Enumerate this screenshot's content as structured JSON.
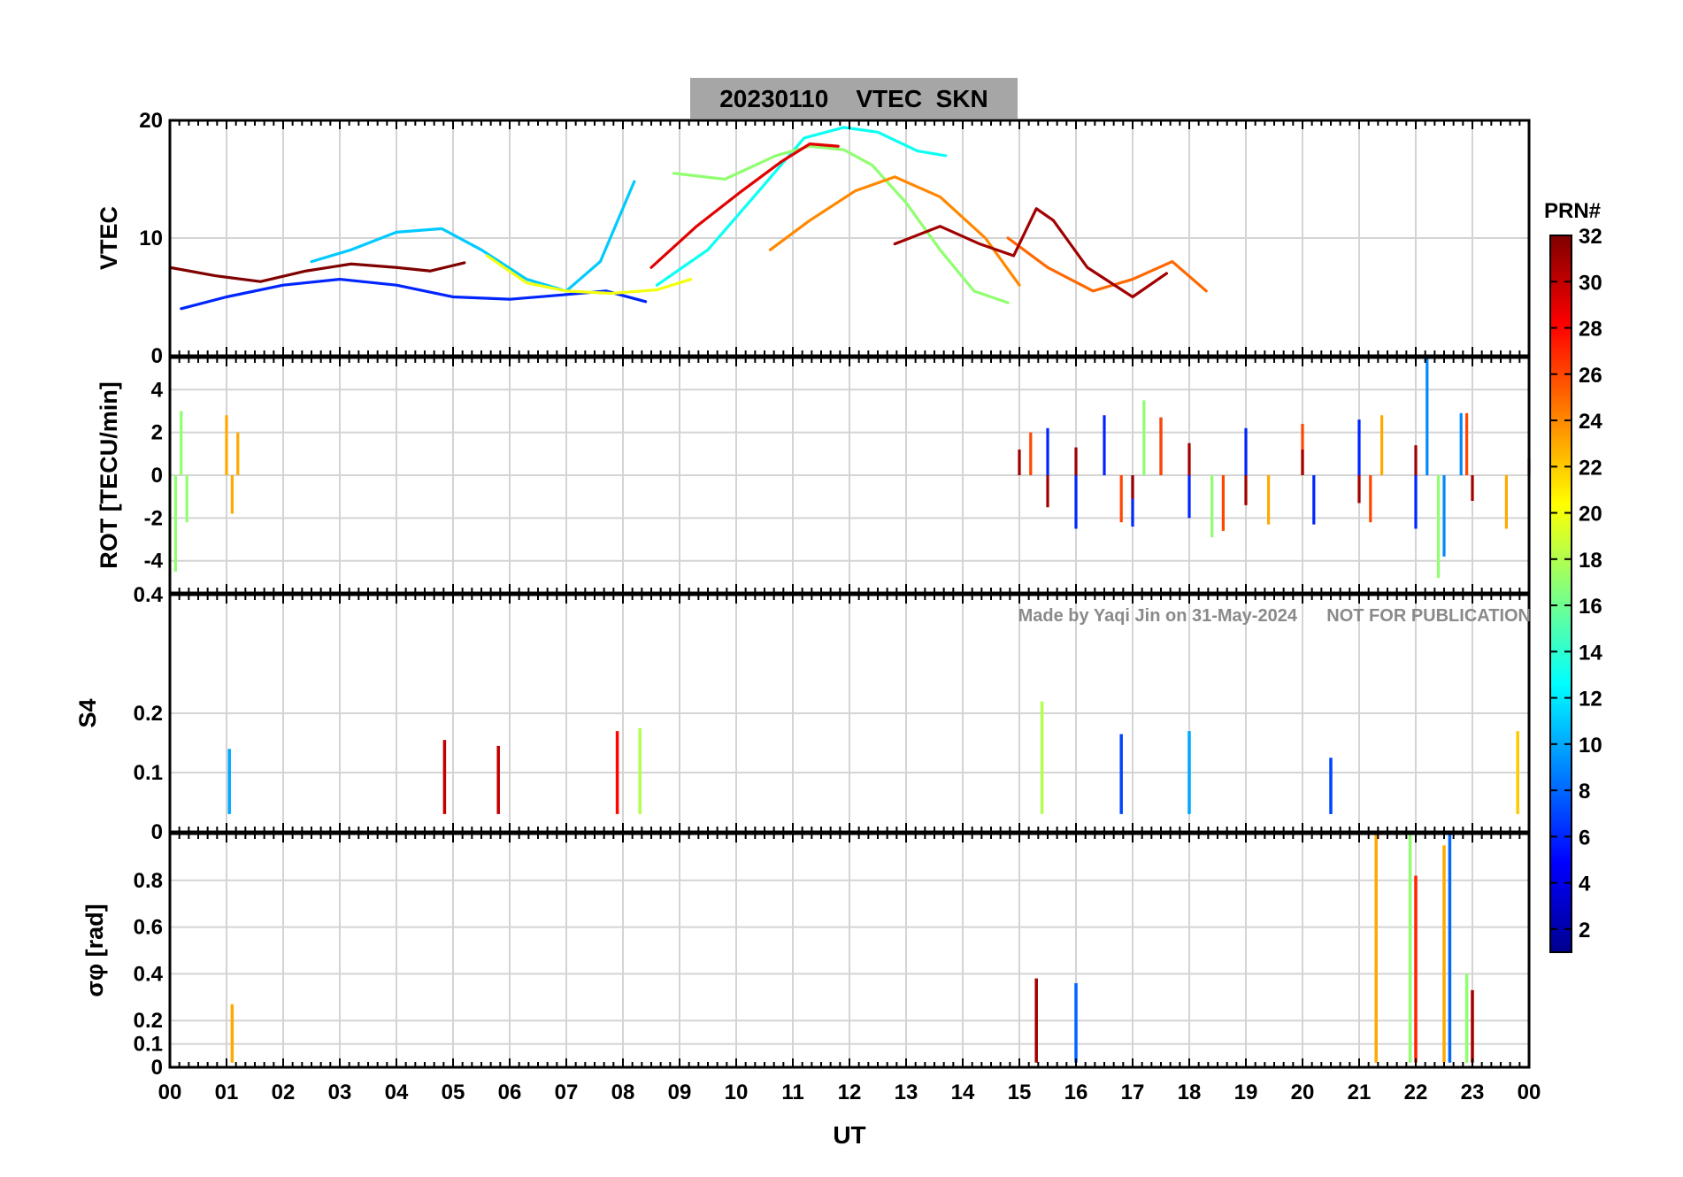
{
  "chart_data": {
    "type": "line",
    "title": "20230110    VTEC  SKN",
    "watermark": "Made by Yaqi Jin on 31-May-2024      NOT FOR PUBLICATION",
    "xlabel": "UT",
    "xlim": [
      0,
      24
    ],
    "x_tick_labels": [
      "00",
      "01",
      "02",
      "03",
      "04",
      "05",
      "06",
      "07",
      "08",
      "09",
      "10",
      "11",
      "12",
      "13",
      "14",
      "15",
      "16",
      "17",
      "18",
      "19",
      "20",
      "21",
      "22",
      "23",
      "00"
    ],
    "colorbar": {
      "label": "PRN#",
      "range": [
        1,
        32
      ],
      "tick_labels": [
        "2",
        "4",
        "6",
        "8",
        "10",
        "12",
        "14",
        "16",
        "18",
        "20",
        "22",
        "24",
        "26",
        "28",
        "30",
        "32"
      ],
      "colormap": [
        "#00008f",
        "#0000ff",
        "#0080ff",
        "#00ffff",
        "#80ff80",
        "#ffff00",
        "#ff8000",
        "#ff0000",
        "#800000"
      ]
    },
    "panels": [
      {
        "id": "vtec",
        "ylabel": "VTEC",
        "ylim": [
          0,
          20
        ],
        "y_tick_labels": [
          "0",
          "10",
          "20"
        ],
        "series": [
          {
            "name": "PRN 6",
            "prn": 6,
            "x": [
              0.2,
              1,
              2,
              3,
              4,
              5,
              6,
              7,
              7.7,
              8.4
            ],
            "y": [
              4,
              5,
              6,
              6.5,
              6,
              5,
              4.8,
              5.2,
              5.5,
              4.6
            ]
          },
          {
            "name": "PRN 11",
            "prn": 11,
            "x": [
              2.5,
              3.2,
              4,
              4.8,
              5.5,
              6.3,
              7,
              7.6,
              8.2
            ],
            "y": [
              8,
              9,
              10.5,
              10.8,
              9,
              6.5,
              5.5,
              8,
              14.8
            ]
          },
          {
            "name": "PRN 13",
            "prn": 13,
            "x": [
              8.6,
              9.5,
              10.4,
              11.2,
              11.9,
              12.5,
              13.2,
              13.7
            ],
            "y": [
              6,
              9,
              14,
              18.5,
              19.4,
              19,
              17.4,
              17
            ]
          },
          {
            "name": "PRN 17",
            "prn": 17,
            "x": [
              8.9,
              9.8,
              10.7,
              11.3,
              11.9,
              12.4,
              13,
              13.6,
              14.2,
              14.8
            ],
            "y": [
              15.5,
              15,
              17,
              17.8,
              17.5,
              16.2,
              13,
              9,
              5.5,
              4.5
            ]
          },
          {
            "name": "PRN 20",
            "prn": 20,
            "x": [
              5.6,
              6.3,
              7,
              7.8,
              8.6,
              9.2
            ],
            "y": [
              8.5,
              6.2,
              5.5,
              5.3,
              5.6,
              6.5
            ]
          },
          {
            "name": "PRN 24",
            "prn": 24,
            "x": [
              10.6,
              11.3,
              12.1,
              12.8,
              13.6,
              14.4,
              15
            ],
            "y": [
              9,
              11.5,
              14,
              15.2,
              13.5,
              10,
              6
            ]
          },
          {
            "name": "PRN 25",
            "prn": 25,
            "x": [
              14.8,
              15.5,
              16.3,
              17,
              17.7,
              18.3
            ],
            "y": [
              10,
              7.5,
              5.5,
              6.5,
              8,
              5.5
            ]
          },
          {
            "name": "PRN 29",
            "prn": 29,
            "x": [
              8.5,
              9.3,
              10.1,
              10.8,
              11.3,
              11.8
            ],
            "y": [
              7.5,
              11,
              14,
              16.5,
              18,
              17.8
            ]
          },
          {
            "name": "PRN 31",
            "prn": 31,
            "x": [
              12.8,
              13.6,
              14.3,
              14.9,
              15.3,
              15.6,
              16.2,
              17,
              17.6
            ],
            "y": [
              9.5,
              11,
              9.5,
              8.5,
              12.5,
              11.5,
              7.5,
              5,
              7
            ]
          },
          {
            "name": "PRN 32",
            "prn": 32,
            "x": [
              0,
              0.8,
              1.6,
              2.4,
              3.2,
              4,
              4.6,
              5.2
            ],
            "y": [
              7.5,
              6.8,
              6.3,
              7.2,
              7.8,
              7.5,
              7.2,
              7.9
            ]
          }
        ]
      },
      {
        "id": "rot",
        "ylabel": "ROT [TECU/min]",
        "ylim": [
          -5.5,
          5.5
        ],
        "y_tick_labels": [
          "-4",
          "-2",
          "0",
          "2",
          "4"
        ],
        "series": [
          {
            "name": "PRN 6",
            "prn": 6,
            "x": [
              15.5,
              16,
              16.5,
              17,
              17.5,
              18,
              19,
              20.2,
              21,
              22
            ],
            "y": [
              2.2,
              -2.5,
              2.8,
              -2.4,
              2.7,
              -2,
              2.2,
              -2.3,
              2.6,
              -2.5
            ]
          },
          {
            "name": "PRN 9",
            "prn": 9,
            "x": [
              22.2,
              22.5,
              22.8
            ],
            "y": [
              5.5,
              -3.8,
              2.9
            ]
          },
          {
            "name": "PRN 17",
            "prn": 17,
            "x": [
              0.1,
              0.2,
              0.3,
              17.2,
              18.4,
              22.4
            ],
            "y": [
              -4.5,
              3,
              -2.2,
              3.5,
              -2.9,
              -4.8
            ]
          },
          {
            "name": "PRN 23",
            "prn": 23,
            "x": [
              1,
              1.1,
              1.2,
              19.4,
              21.4,
              23.6
            ],
            "y": [
              2.8,
              -1.8,
              2,
              -2.3,
              2.8,
              -2.5
            ]
          },
          {
            "name": "PRN 26",
            "prn": 26,
            "x": [
              15.2,
              16.8,
              17.5,
              18.6,
              20,
              21.2,
              22.9
            ],
            "y": [
              2,
              -2.2,
              2.7,
              -2.6,
              2.4,
              -2.2,
              2.9
            ]
          },
          {
            "name": "PRN 31",
            "prn": 31,
            "x": [
              15,
              15.5,
              16,
              17,
              18,
              19,
              20,
              21,
              22,
              23,
              24
            ],
            "y": [
              1.2,
              -1.5,
              1.3,
              -1.1,
              1.5,
              -1.4,
              1.2,
              -1.3,
              1.4,
              -1.2,
              0.8
            ]
          }
        ]
      },
      {
        "id": "s4",
        "ylabel": "S4",
        "ylim": [
          0,
          0.4
        ],
        "y_tick_labels": [
          "0.4",
          "0.2",
          "0.1",
          "0"
        ],
        "series": [
          {
            "name": "PRN 10",
            "prn": 10,
            "x": [
              1.05,
              18
            ],
            "y": [
              0.14,
              0.17
            ]
          },
          {
            "name": "PRN 7",
            "prn": 7,
            "x": [
              16.8,
              20.5
            ],
            "y": [
              0.165,
              0.125
            ]
          },
          {
            "name": "PRN 18",
            "prn": 18,
            "x": [
              8.3,
              15.4
            ],
            "y": [
              0.175,
              0.22
            ]
          },
          {
            "name": "PRN 22",
            "prn": 22,
            "x": [
              23.8
            ],
            "y": [
              0.17
            ]
          },
          {
            "name": "PRN 28",
            "prn": 28,
            "x": [
              7.9
            ],
            "y": [
              0.17
            ]
          },
          {
            "name": "PRN 30",
            "prn": 30,
            "x": [
              4.85,
              5.8
            ],
            "y": [
              0.155,
              0.145
            ]
          }
        ]
      },
      {
        "id": "sigma_phi",
        "ylabel": "σφ [rad]",
        "ylim": [
          0,
          1
        ],
        "y_tick_labels": [
          "0",
          "0.1",
          "0.2",
          "0.4",
          "0.6",
          "0.8"
        ],
        "series": [
          {
            "name": "PRN 23",
            "prn": 23,
            "x": [
              1.1,
              21.3,
              22.5
            ],
            "y": [
              0.27,
              1,
              0.95
            ]
          },
          {
            "name": "PRN 17",
            "prn": 17,
            "x": [
              21.9,
              22.9
            ],
            "y": [
              1,
              0.4
            ]
          },
          {
            "name": "PRN 8",
            "prn": 8,
            "x": [
              22.6,
              16
            ],
            "y": [
              1,
              0.36
            ]
          },
          {
            "name": "PRN 27",
            "prn": 27,
            "x": [
              22
            ],
            "y": [
              0.82
            ]
          },
          {
            "name": "PRN 31",
            "prn": 31,
            "x": [
              15.3,
              23
            ],
            "y": [
              0.38,
              0.33
            ]
          }
        ]
      }
    ]
  }
}
